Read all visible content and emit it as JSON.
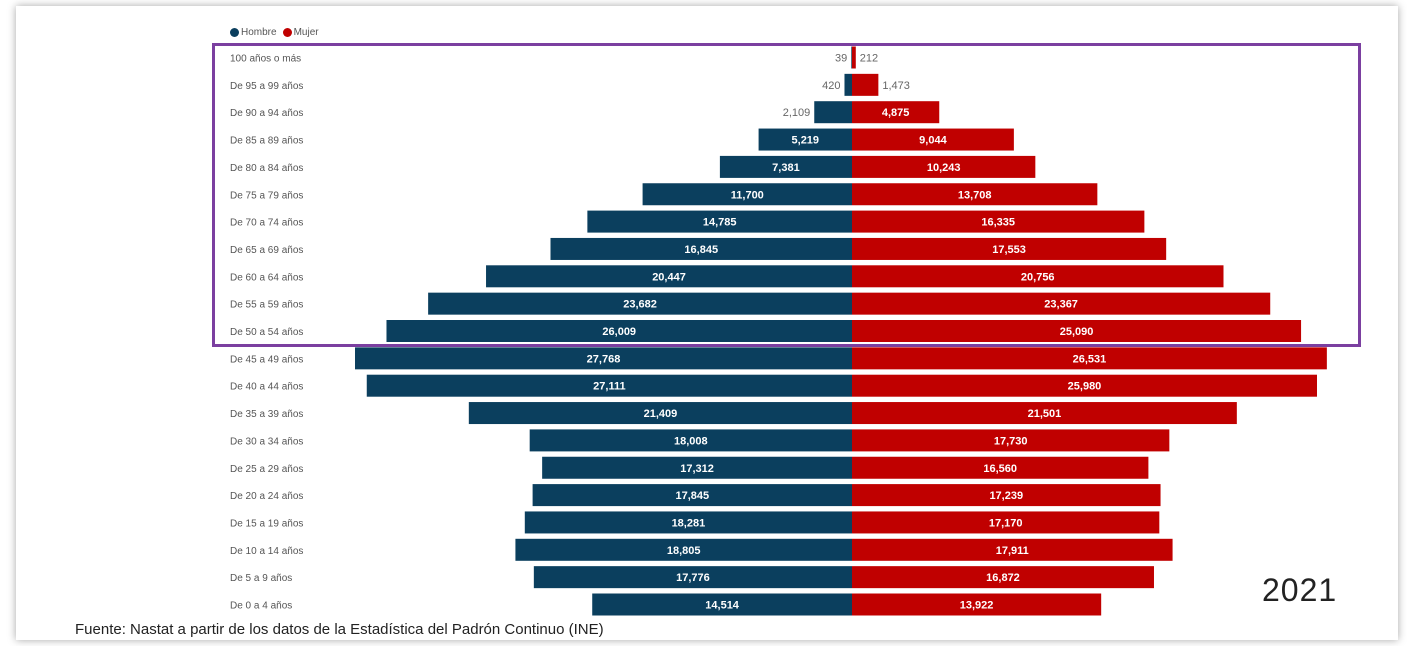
{
  "legend": {
    "male_label": "Hombre",
    "female_label": "Mujer"
  },
  "colors": {
    "male": "#0b3f5e",
    "female": "#c00000",
    "highlight": "#7b3fa0"
  },
  "year": "2021",
  "source": "Fuente: Nastat a partir de los datos de la Estadística del Padrón Continuo (INE)",
  "chart_data": {
    "type": "bar",
    "orientation": "horizontal-population-pyramid",
    "categories": [
      "100 años o más",
      "De 95 a 99 años",
      "De 90 a 94 años",
      "De 85 a 89 años",
      "De 80 a 84 años",
      "De 75 a 79 años",
      "De 70 a 74 años",
      "De 65 a 69 años",
      "De 60 a 64 años",
      "De 55 a 59 años",
      "De 50 a 54 años",
      "De 45 a 49 años",
      "De 40 a 44 años",
      "De 35 a 39 años",
      "De 30 a 34 años",
      "De 25 a 29 años",
      "De 20 a 24 años",
      "De 15 a 19 años",
      "De 10 a 14 años",
      "De 5 a 9 años",
      "De 0 a 4 años"
    ],
    "series": [
      {
        "name": "Hombre",
        "values": [
          39,
          420,
          2109,
          5219,
          7381,
          11700,
          14785,
          16845,
          20447,
          23682,
          26009,
          27768,
          27111,
          21409,
          18008,
          17312,
          17845,
          18281,
          18805,
          17776,
          14514
        ],
        "labels": [
          "39",
          "420",
          "2,109",
          "5,219",
          "7,381",
          "11,700",
          "14,785",
          "16,845",
          "20,447",
          "23,682",
          "26,009",
          "27,768",
          "27,111",
          "21,409",
          "18,008",
          "17,312",
          "17,845",
          "18,281",
          "18,805",
          "17,776",
          "14,514"
        ]
      },
      {
        "name": "Mujer",
        "values": [
          212,
          1473,
          4875,
          9044,
          10243,
          13708,
          16335,
          17553,
          20756,
          23367,
          25090,
          26531,
          25980,
          21501,
          17730,
          16560,
          17239,
          17170,
          17911,
          16872,
          13922
        ],
        "labels": [
          "212",
          "1,473",
          "4,875",
          "9,044",
          "10,243",
          "13,708",
          "16,335",
          "17,553",
          "20,756",
          "23,367",
          "25,090",
          "26,531",
          "25,980",
          "21,501",
          "17,730",
          "16,560",
          "17,239",
          "17,170",
          "17,911",
          "16,872",
          "13,922"
        ]
      }
    ],
    "highlighted_categories": [
      "100 años o más",
      "De 50 a 54 años"
    ],
    "grid": false,
    "legend_position": "top-left"
  }
}
